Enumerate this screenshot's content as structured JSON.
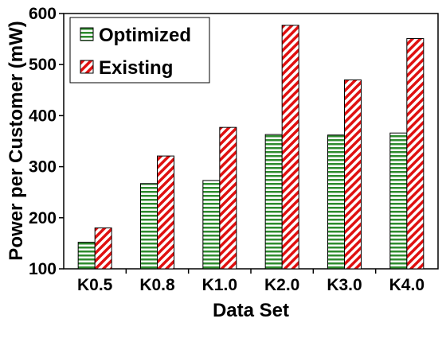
{
  "chart_data": {
    "type": "bar",
    "title": "",
    "xlabel": "Data Set",
    "ylabel": "Power per Customer (mW)",
    "categories": [
      "K0.5",
      "K0.8",
      "K1.0",
      "K2.0",
      "K3.0",
      "K4.0"
    ],
    "series": [
      {
        "name": "Optimized",
        "values": [
          152,
          267,
          273,
          363,
          362,
          366
        ],
        "color": "#2e8b2e",
        "pattern": "horizontal-stripes"
      },
      {
        "name": "Existing",
        "values": [
          180,
          321,
          377,
          577,
          470,
          551
        ],
        "color": "#e01010",
        "pattern": "diagonal-stripes"
      }
    ],
    "ylim": [
      100,
      600
    ],
    "yticks": [
      100,
      200,
      300,
      400,
      500,
      600
    ],
    "grid": false,
    "legend": "top-left"
  }
}
